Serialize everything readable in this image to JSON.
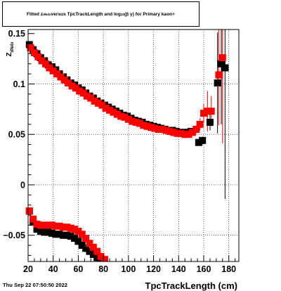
{
  "chart_data": {
    "type": "scatter",
    "title": {
      "pre": "Fitted  z",
      "sub1": "dNdx",
      "mid": "  versus TpcTrackLength and log",
      "sub2": "10",
      "post": "(β γ) for Primary kaon+"
    },
    "ylabel": "Z",
    "ylabel_sub": "dNdx",
    "xlabel": "TpcTrackLength (cm)",
    "xlim": [
      20,
      188
    ],
    "ylim": [
      -0.076,
      0.154
    ],
    "xticks": [
      20,
      40,
      60,
      80,
      100,
      120,
      140,
      160,
      180
    ],
    "yticks": [
      -0.05,
      0,
      0.05,
      0.1
    ],
    "ytick_labels": [
      "−0.05",
      "0",
      "0.05",
      "0.1"
    ],
    "ytick_partial": "0.15",
    "grid": true,
    "series": [
      {
        "color": "#000000",
        "marker_size": 10,
        "points": [
          [
            21,
            0.139,
            0
          ],
          [
            24,
            0.134,
            0
          ],
          [
            27,
            0.13,
            0
          ],
          [
            30,
            0.126,
            0
          ],
          [
            33,
            0.123,
            0
          ],
          [
            36,
            0.119,
            0
          ],
          [
            39,
            0.117,
            0
          ],
          [
            42,
            0.114,
            0
          ],
          [
            45,
            0.11,
            0
          ],
          [
            48,
            0.107,
            0
          ],
          [
            51,
            0.104,
            0
          ],
          [
            54,
            0.101,
            0
          ],
          [
            57,
            0.099,
            0
          ],
          [
            60,
            0.096,
            0
          ],
          [
            63,
            0.094,
            0
          ],
          [
            66,
            0.091,
            0
          ],
          [
            69,
            0.088,
            0
          ],
          [
            72,
            0.086,
            0
          ],
          [
            75,
            0.083,
            0
          ],
          [
            78,
            0.081,
            0
          ],
          [
            81,
            0.079,
            0
          ],
          [
            84,
            0.077,
            0
          ],
          [
            87,
            0.075,
            0
          ],
          [
            90,
            0.073,
            0
          ],
          [
            93,
            0.071,
            0
          ],
          [
            96,
            0.069,
            0
          ],
          [
            99,
            0.068,
            0
          ],
          [
            102,
            0.066,
            0
          ],
          [
            105,
            0.064,
            0
          ],
          [
            108,
            0.063,
            0
          ],
          [
            111,
            0.062,
            0
          ],
          [
            114,
            0.06,
            0
          ],
          [
            117,
            0.059,
            0
          ],
          [
            120,
            0.058,
            0
          ],
          [
            123,
            0.057,
            0
          ],
          [
            126,
            0.056,
            0
          ],
          [
            129,
            0.055,
            0
          ],
          [
            132,
            0.054,
            0
          ],
          [
            135,
            0.054,
            0
          ],
          [
            138,
            0.053,
            0
          ],
          [
            141,
            0.052,
            0
          ],
          [
            144,
            0.052,
            0
          ],
          [
            147,
            0.052,
            0
          ],
          [
            150,
            0.053,
            0
          ],
          [
            156,
            0.042,
            0.003
          ],
          [
            159,
            0.044,
            0.004
          ],
          [
            165,
            0.062,
            0.008
          ],
          [
            171,
            0.101,
            0.05
          ],
          [
            174,
            0.12,
            0.06
          ],
          [
            177,
            0.116,
            0.13
          ],
          [
            21,
            -0.026,
            0
          ],
          [
            24,
            -0.037,
            0
          ],
          [
            27,
            -0.044,
            0
          ],
          [
            30,
            -0.046,
            0
          ],
          [
            33,
            -0.047,
            0
          ],
          [
            36,
            -0.047,
            0
          ],
          [
            39,
            -0.048,
            0
          ],
          [
            42,
            -0.049,
            0
          ],
          [
            45,
            -0.049,
            0
          ],
          [
            48,
            -0.05,
            0
          ],
          [
            51,
            -0.05,
            0
          ],
          [
            54,
            -0.051,
            0
          ],
          [
            57,
            -0.053,
            0
          ],
          [
            60,
            -0.056,
            0
          ],
          [
            63,
            -0.06,
            0
          ],
          [
            66,
            -0.063,
            0
          ],
          [
            69,
            -0.066,
            0
          ],
          [
            72,
            -0.069,
            0
          ],
          [
            75,
            -0.072,
            0
          ],
          [
            78,
            -0.075,
            0
          ],
          [
            81,
            -0.076,
            0
          ]
        ]
      },
      {
        "color": "#ff0000",
        "marker_size": 10,
        "points": [
          [
            22,
            0.136,
            0
          ],
          [
            25,
            0.131,
            0
          ],
          [
            28,
            0.127,
            0
          ],
          [
            31,
            0.123,
            0
          ],
          [
            34,
            0.12,
            0
          ],
          [
            37,
            0.116,
            0
          ],
          [
            40,
            0.113,
            0
          ],
          [
            43,
            0.11,
            0
          ],
          [
            46,
            0.107,
            0
          ],
          [
            49,
            0.104,
            0
          ],
          [
            52,
            0.101,
            0
          ],
          [
            55,
            0.098,
            0
          ],
          [
            58,
            0.096,
            0
          ],
          [
            61,
            0.093,
            0
          ],
          [
            64,
            0.091,
            0
          ],
          [
            67,
            0.088,
            0
          ],
          [
            70,
            0.086,
            0
          ],
          [
            73,
            0.083,
            0
          ],
          [
            76,
            0.081,
            0
          ],
          [
            79,
            0.079,
            0
          ],
          [
            82,
            0.076,
            0
          ],
          [
            85,
            0.074,
            0
          ],
          [
            88,
            0.072,
            0
          ],
          [
            91,
            0.07,
            0
          ],
          [
            94,
            0.068,
            0
          ],
          [
            97,
            0.067,
            0
          ],
          [
            100,
            0.065,
            0
          ],
          [
            103,
            0.063,
            0
          ],
          [
            106,
            0.062,
            0
          ],
          [
            109,
            0.061,
            0
          ],
          [
            112,
            0.059,
            0
          ],
          [
            115,
            0.058,
            0
          ],
          [
            118,
            0.057,
            0
          ],
          [
            121,
            0.056,
            0
          ],
          [
            124,
            0.055,
            0
          ],
          [
            127,
            0.055,
            0
          ],
          [
            130,
            0.054,
            0
          ],
          [
            133,
            0.053,
            0
          ],
          [
            136,
            0.052,
            0
          ],
          [
            139,
            0.051,
            0
          ],
          [
            142,
            0.051,
            0
          ],
          [
            145,
            0.05,
            0
          ],
          [
            148,
            0.05,
            0
          ],
          [
            151,
            0.052,
            0
          ],
          [
            154,
            0.055,
            0.004
          ],
          [
            157,
            0.06,
            0.006
          ],
          [
            160,
            0.071,
            0.009
          ],
          [
            163,
            0.073,
            0.02
          ],
          [
            166,
            0.073,
            0.015
          ],
          [
            172,
            0.109,
            0.05
          ],
          [
            175,
            0.126,
            0.085
          ],
          [
            21,
            -0.026,
            0
          ],
          [
            24,
            -0.034,
            0
          ],
          [
            27,
            -0.039,
            0
          ],
          [
            30,
            -0.04,
            0
          ],
          [
            33,
            -0.04,
            0
          ],
          [
            36,
            -0.04,
            0
          ],
          [
            39,
            -0.04,
            0
          ],
          [
            42,
            -0.041,
            0
          ],
          [
            45,
            -0.041,
            0
          ],
          [
            48,
            -0.042,
            0
          ],
          [
            51,
            -0.042,
            0
          ],
          [
            54,
            -0.043,
            0
          ],
          [
            57,
            -0.044,
            0
          ],
          [
            60,
            -0.046,
            0
          ],
          [
            63,
            -0.049,
            0
          ],
          [
            66,
            -0.053,
            0
          ],
          [
            69,
            -0.058,
            0
          ],
          [
            72,
            -0.062,
            0
          ],
          [
            75,
            -0.066,
            0
          ],
          [
            78,
            -0.071,
            0
          ],
          [
            81,
            -0.074,
            0
          ]
        ]
      }
    ]
  },
  "timestamp": "Thu Sep 22 07:50:50 2022"
}
